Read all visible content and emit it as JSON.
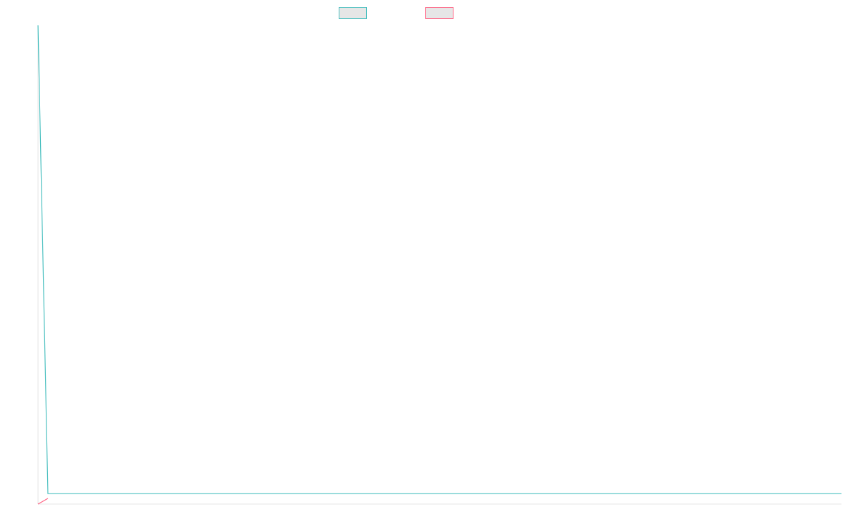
{
  "chart_data": {
    "type": "line",
    "title": "",
    "xlabel": "",
    "ylabel": "",
    "grid": false,
    "legend_position": "top-center",
    "x": [
      0,
      1
    ],
    "series": [
      {
        "name": "",
        "color": "#4bc0c0",
        "fill": "#e6e6e6",
        "values": [
          100,
          1
        ]
      },
      {
        "name": "",
        "color": "#ff6384",
        "fill": "#e6e6e6",
        "values": [
          0,
          0
        ]
      }
    ],
    "xlim": [
      0,
      1
    ],
    "ylim": [
      0,
      100
    ]
  }
}
